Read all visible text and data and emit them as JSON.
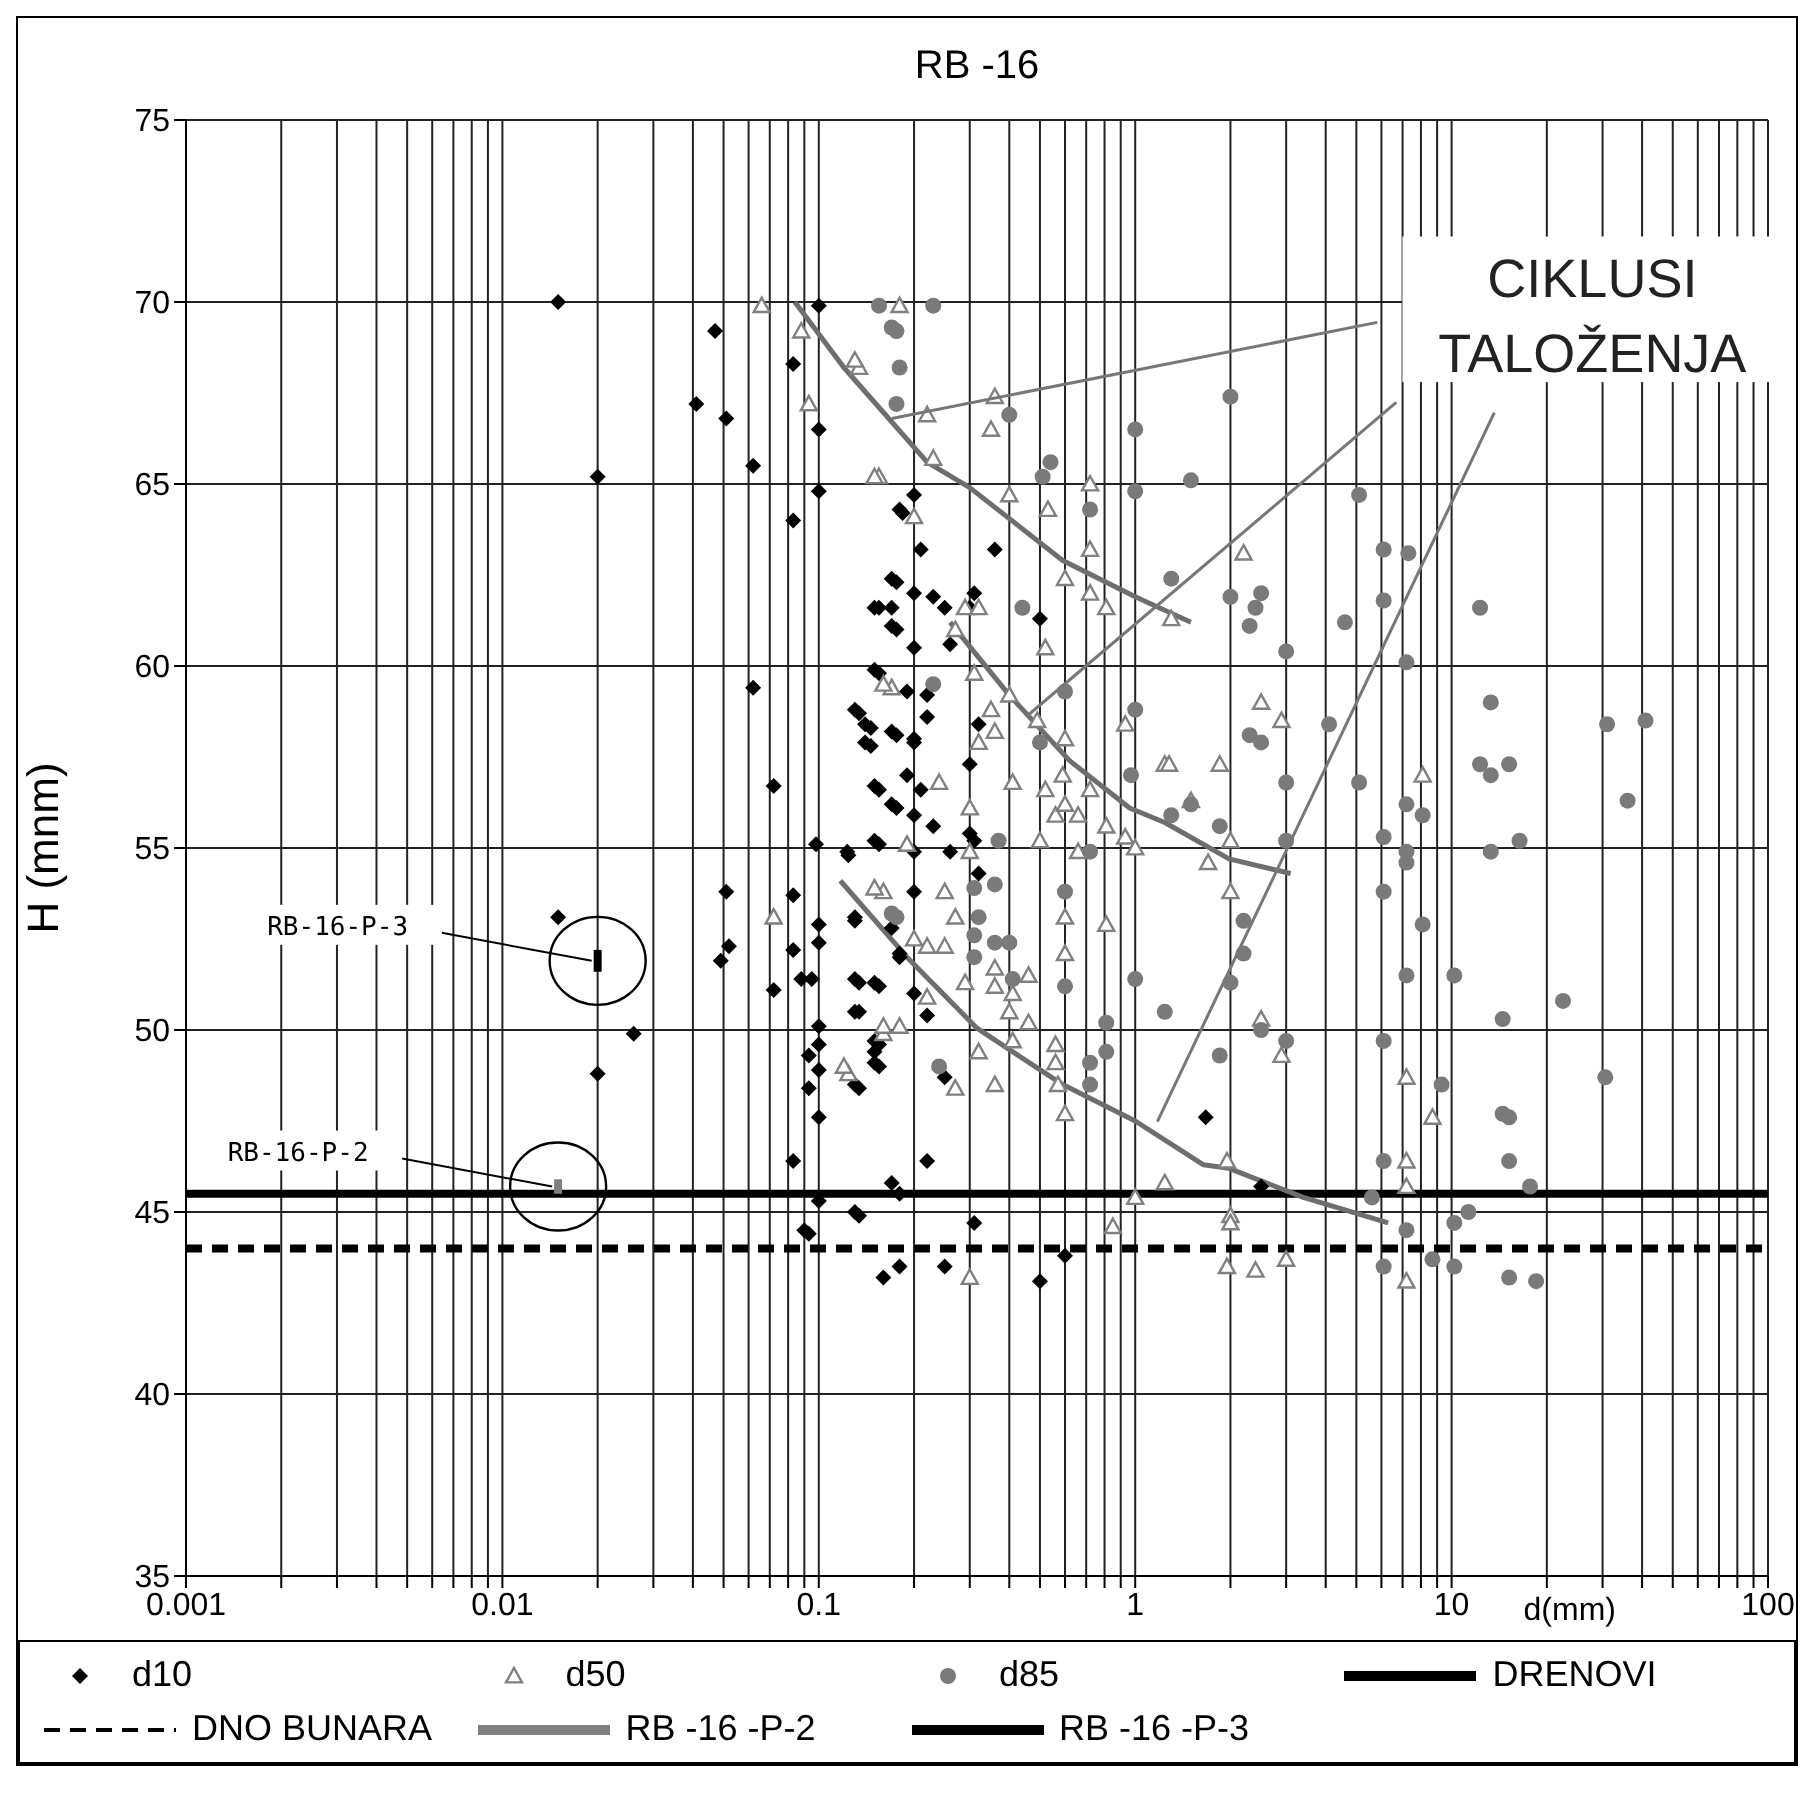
{
  "chart_data": {
    "type": "scatter",
    "title": "RB -16",
    "xlabel": "d(mm)",
    "ylabel": "H (mnm)",
    "log": "x",
    "grid": true,
    "legend": "bottom",
    "xlim": [
      0.001,
      100
    ],
    "ylim": [
      35,
      75
    ],
    "xticks": [
      0.001,
      {
        "value": 0.002,
        "label": null
      },
      {
        "value": 0.003,
        "label": null
      },
      {
        "value": 0.004,
        "label": null
      },
      {
        "value": 0.005,
        "label": null
      },
      {
        "value": 0.006,
        "label": null
      },
      {
        "value": 0.007,
        "label": null
      },
      {
        "value": 0.008,
        "label": null
      },
      {
        "value": 0.009,
        "label": null
      },
      0.01,
      {
        "value": 0.02,
        "label": null
      },
      {
        "value": 0.03,
        "label": null
      },
      {
        "value": 0.04,
        "label": null
      },
      {
        "value": 0.05,
        "label": null
      },
      {
        "value": 0.06,
        "label": null
      },
      {
        "value": 0.07,
        "label": null
      },
      {
        "value": 0.08,
        "label": null
      },
      {
        "value": 0.09,
        "label": null
      },
      0.1,
      {
        "value": 0.2,
        "label": null
      },
      {
        "value": 0.3,
        "label": null
      },
      {
        "value": 0.4,
        "label": null
      },
      {
        "value": 0.5,
        "label": null
      },
      {
        "value": 0.6,
        "label": null
      },
      {
        "value": 0.7,
        "label": null
      },
      {
        "value": 0.8,
        "label": null
      },
      {
        "value": 0.9,
        "label": null
      },
      1,
      {
        "value": 2,
        "label": null
      },
      {
        "value": 3,
        "label": null
      },
      {
        "value": 4,
        "label": null
      },
      {
        "value": 5,
        "label": null
      },
      {
        "value": 6,
        "label": null
      },
      {
        "value": 7,
        "label": null
      },
      {
        "value": 8,
        "label": null
      },
      {
        "value": 9,
        "label": null
      },
      10,
      {
        "value": 20,
        "label": null
      },
      {
        "value": 30,
        "label": null
      },
      {
        "value": 40,
        "label": null
      },
      {
        "value": 50,
        "label": null
      },
      {
        "value": 60,
        "label": null
      },
      {
        "value": 70,
        "label": null
      },
      {
        "value": 80,
        "label": null
      },
      {
        "value": 90,
        "label": null
      },
      100
    ],
    "yticks": [
      35,
      40,
      45,
      50,
      55,
      60,
      65,
      70,
      75
    ],
    "annotations": [
      {
        "text": "RB-16-P-3",
        "x": 0.02,
        "y": 51.9
      },
      {
        "text": "RB-16-P-2",
        "x": 0.015,
        "y": 45.7
      },
      {
        "text": "CIKLUSI\nTALOŽENJA",
        "x": 0.17,
        "y": 66.8
      }
    ],
    "series": [
      {
        "name": "d10",
        "marker": "diamond",
        "color": "#000000",
        "x": [
          0.015,
          0.047,
          0.041,
          0.051,
          0.083,
          0.1,
          0.1,
          0.062,
          0.02,
          0.1,
          0.083,
          0.062,
          0.072,
          0.098,
          0.051,
          0.083,
          0.052,
          0.049,
          0.072,
          0.015,
          0.026,
          0.02,
          0.083,
          0.088,
          0.095,
          0.1,
          0.1,
          0.1,
          0.1,
          0.093,
          0.1,
          0.093,
          0.1,
          0.083,
          0.1,
          0.093,
          0.124,
          0.13,
          0.134,
          0.134,
          0.155,
          0.155,
          0.155,
          0.134,
          0.176,
          0.155,
          0.176,
          0.155,
          0.134,
          0.146,
          0.146,
          0.176,
          0.155,
          0.176,
          0.155,
          0.18,
          0.134,
          0.18,
          0.184,
          0.2,
          0.18,
          0.21,
          0.36,
          0.17,
          0.2,
          0.23,
          0.31,
          0.25,
          0.15,
          0.17,
          0.3,
          0.17,
          0.5,
          0.2,
          0.26,
          0.15,
          0.19,
          0.22,
          0.22,
          0.13,
          0.14,
          0.17,
          0.2,
          0.14,
          0.32,
          0.2,
          0.19,
          0.21,
          0.15,
          0.17,
          0.2,
          0.23,
          0.3,
          0.3,
          0.31,
          0.32,
          0.123,
          0.15,
          0.2,
          0.26,
          0.2,
          0.13,
          0.17,
          0.18,
          0.13,
          0.15,
          0.2,
          0.22,
          0.13,
          0.15,
          0.15,
          0.15,
          0.13,
          0.25,
          0.22,
          0.17,
          0.13,
          0.31,
          0.18,
          0.16,
          0.25,
          0.5,
          0.6,
          1.67,
          2.5,
          0.09
        ],
        "values": [
          70,
          69.2,
          67.2,
          66.8,
          68.3,
          69.9,
          66.5,
          65.5,
          65.2,
          64.8,
          64,
          59.4,
          56.7,
          55.1,
          53.8,
          53.7,
          52.3,
          51.9,
          51.1,
          53.1,
          49.9,
          48.8,
          52.2,
          51.4,
          51.4,
          52.9,
          52.4,
          50.1,
          49.6,
          49.3,
          48.9,
          48.4,
          47.6,
          46.4,
          45.3,
          44.4,
          54.8,
          53,
          51.3,
          50.5,
          51.2,
          49.6,
          49,
          48.4,
          62.3,
          61.6,
          61,
          59.8,
          58.7,
          58.3,
          57.8,
          58.1,
          56.6,
          56.1,
          55.1,
          52,
          44.9,
          45.5,
          64.2,
          64.7,
          64.3,
          63.2,
          63.2,
          62.4,
          62,
          61.9,
          62,
          61.6,
          61.6,
          61.6,
          61.6,
          61.1,
          61.3,
          60.5,
          60.6,
          59.9,
          59.3,
          59.2,
          58.6,
          58.8,
          58.4,
          58.2,
          58,
          57.9,
          58.4,
          57.9,
          57,
          56.6,
          56.7,
          56.2,
          55.9,
          55.6,
          57.3,
          55.4,
          55.2,
          54.3,
          54.9,
          55.2,
          54.9,
          54.9,
          53.8,
          53.1,
          52.8,
          52.1,
          51.4,
          51.3,
          51,
          50.4,
          50.5,
          49.7,
          49.4,
          49.1,
          48.5,
          48.7,
          46.4,
          45.8,
          45,
          44.7,
          43.5,
          43.2,
          43.5,
          43.1,
          43.8,
          47.6,
          45.7,
          44.5
        ]
      },
      {
        "name": "d50",
        "marker": "triangle",
        "color": "#808080",
        "x": [
          0.066,
          0.088,
          0.134,
          0.093,
          0.155,
          0.17,
          0.16,
          0.072,
          0.16,
          0.124,
          0.18,
          0.13,
          0.36,
          0.22,
          0.35,
          0.15,
          0.23,
          0.4,
          0.53,
          0.72,
          0.72,
          0.6,
          0.72,
          0.81,
          1.3,
          0.2,
          0.29,
          0.32,
          0.27,
          0.52,
          0.16,
          0.31,
          0.4,
          0.35,
          0.36,
          0.32,
          0.49,
          0.6,
          0.93,
          1.24,
          0.24,
          0.41,
          0.52,
          0.59,
          0.72,
          0.3,
          0.56,
          0.66,
          0.6,
          0.81,
          0.93,
          0.19,
          0.3,
          0.5,
          0.66,
          1.0,
          0.15,
          0.25,
          0.27,
          0.6,
          0.81,
          0.2,
          0.22,
          0.25,
          0.6,
          0.29,
          0.36,
          0.36,
          0.46,
          0.41,
          0.22,
          0.4,
          0.46,
          0.16,
          0.18,
          0.41,
          0.56,
          0.32,
          0.12,
          0.56,
          0.27,
          0.36,
          0.57,
          0.6,
          1.24,
          1.0,
          0.85,
          0.3,
          2.2,
          2.5,
          2.9,
          1.85,
          1.28,
          1.5,
          8.1,
          2.0,
          1.7,
          2.0,
          2.5,
          2.9,
          7.2,
          8.7,
          1.95,
          7.2,
          7.2,
          2.0,
          2.0,
          1.95,
          2.4,
          3.0,
          7.2
        ],
        "values": [
          69.9,
          69.2,
          68.2,
          67.2,
          65.2,
          59.4,
          53.8,
          53.1,
          49.9,
          48.8,
          69.9,
          68.4,
          67.4,
          66.9,
          66.5,
          65.2,
          65.7,
          64.7,
          64.3,
          65,
          63.2,
          62.4,
          62,
          61.6,
          61.3,
          64.1,
          61.6,
          61.6,
          61,
          60.5,
          59.5,
          59.8,
          59.2,
          58.8,
          58.2,
          57.9,
          58.5,
          58,
          58.4,
          57.3,
          56.8,
          56.8,
          56.6,
          57,
          56.6,
          56.1,
          55.9,
          55.9,
          56.2,
          55.6,
          55.3,
          55.1,
          54.9,
          55.2,
          54.9,
          55,
          53.9,
          53.8,
          53.1,
          53.1,
          52.9,
          52.5,
          52.3,
          52.3,
          52.1,
          51.3,
          51.7,
          51.2,
          51.5,
          51,
          50.9,
          50.5,
          50.2,
          50.1,
          50.1,
          49.7,
          49.6,
          49.4,
          49,
          49.1,
          48.4,
          48.5,
          48.5,
          47.7,
          45.8,
          45.4,
          44.6,
          43.2,
          63.1,
          59,
          58.5,
          57.3,
          57.3,
          56.3,
          57,
          55.2,
          54.6,
          53.8,
          50.3,
          49.3,
          48.7,
          47.6,
          46.4,
          46.4,
          45.7,
          44.9,
          44.7,
          43.5,
          43.4,
          43.7,
          43.1
        ]
      },
      {
        "name": "d85",
        "marker": "circle",
        "color": "#7a7a7a",
        "x": [
          0.155,
          0.176,
          0.18,
          0.176,
          0.176,
          0.23,
          0.17,
          0.4,
          0.51,
          0.54,
          0.72,
          1.0,
          1.0,
          1.5,
          1.3,
          0.44,
          0.23,
          0.6,
          1.0,
          0.5,
          0.97,
          1.3,
          1.5,
          0.37,
          0.72,
          0.31,
          0.36,
          0.6,
          0.17,
          0.32,
          0.31,
          0.36,
          0.4,
          0.31,
          0.41,
          0.6,
          1.0,
          1.24,
          0.81,
          0.81,
          0.72,
          0.72,
          0.24,
          2.0,
          5.1,
          6.1,
          7.3,
          2.0,
          2.5,
          2.4,
          2.3,
          4.6,
          6.1,
          12.3,
          3.0,
          7.2,
          13.3,
          2.3,
          2.5,
          4.1,
          31,
          41,
          12.3,
          13.3,
          15.2,
          3.0,
          5.1,
          1.85,
          6.1,
          7.2,
          8.1,
          36,
          3.0,
          7.2,
          7.2,
          13.3,
          16.4,
          6.1,
          8.1,
          2.2,
          2.2,
          2.0,
          7.2,
          10.2,
          22.5,
          14.5,
          2.5,
          3.0,
          1.85,
          6.1,
          30.6,
          9.3,
          14.5,
          15.2,
          6.1,
          15.2,
          17.7,
          5.6,
          7.2,
          11.3,
          10.2,
          8.7,
          6.1,
          10.2,
          15.2,
          18.5
        ],
        "values": [
          69.9,
          69.2,
          68.2,
          67.2,
          53.1,
          69.9,
          69.3,
          66.9,
          65.2,
          65.6,
          64.3,
          66.5,
          64.8,
          65.1,
          62.4,
          61.6,
          59.5,
          59.3,
          58.8,
          57.9,
          57,
          55.9,
          56.2,
          55.2,
          54.9,
          53.9,
          54,
          53.8,
          53.2,
          53.1,
          52.6,
          52.4,
          52.4,
          52,
          51.4,
          51.2,
          51.4,
          50.5,
          50.2,
          49.4,
          49.1,
          48.5,
          49,
          67.4,
          64.7,
          63.2,
          63.1,
          61.9,
          62,
          61.6,
          61.1,
          61.2,
          61.8,
          61.6,
          60.4,
          60.1,
          59,
          58.1,
          57.9,
          58.4,
          58.4,
          58.5,
          57.3,
          57,
          57.3,
          56.8,
          56.8,
          55.6,
          55.3,
          56.2,
          55.9,
          56.3,
          55.2,
          54.9,
          54.6,
          54.9,
          55.2,
          53.8,
          52.9,
          53,
          52.1,
          51.3,
          51.5,
          51.5,
          50.8,
          50.3,
          50,
          49.7,
          49.3,
          49.7,
          48.7,
          48.5,
          47.7,
          47.6,
          46.4,
          46.4,
          45.7,
          45.4,
          44.5,
          45,
          44.7,
          43.7,
          43.5,
          43.5,
          43.2,
          43.1
        ]
      },
      {
        "name": "DRENOVI",
        "type": "line",
        "marker": "none",
        "line_style": "solid",
        "color": "#000000",
        "x": [
          0.001,
          100
        ],
        "values": [
          45.5,
          45.5
        ]
      },
      {
        "name": "DNO BUNARA",
        "type": "line",
        "marker": "none",
        "line_style": "dashed",
        "color": "#000000",
        "x": [
          0.001,
          100
        ],
        "values": [
          44,
          44
        ]
      },
      {
        "name": "RB -16 -P-2",
        "type": "line",
        "marker": "none",
        "line_style": "solid",
        "color": "#808080",
        "x": [
          0.015,
          0.015
        ],
        "values": [
          45.5,
          45.9
        ]
      },
      {
        "name": "RB -16 -P-3",
        "type": "line",
        "marker": "none",
        "line_style": "solid",
        "color": "#000000",
        "x": [
          0.02,
          0.02
        ],
        "values": [
          51.6,
          52.2
        ]
      },
      {
        "type": "line",
        "marker": "none",
        "line_style": "solid",
        "color": "#6e6e6e",
        "x": [
          0.084,
          0.12,
          0.22,
          0.3,
          0.59,
          1.0,
          1.5
        ],
        "values": [
          70,
          68.2,
          65.6,
          64.9,
          62.9,
          61.9,
          61.2
        ]
      },
      {
        "type": "line",
        "marker": "none",
        "line_style": "solid",
        "color": "#6e6e6e",
        "x": [
          0.26,
          0.4,
          0.62,
          0.96,
          1.24,
          1.98,
          3.1
        ],
        "values": [
          61.2,
          59.2,
          57.4,
          56.1,
          55.7,
          54.7,
          54.3
        ]
      },
      {
        "type": "line",
        "marker": "none",
        "line_style": "solid",
        "color": "#6e6e6e",
        "x": [
          0.117,
          0.19,
          0.316,
          0.59,
          1.0,
          1.64,
          1.98,
          3.4,
          6.3
        ],
        "values": [
          54.1,
          52,
          50.05,
          48.5,
          47.5,
          46.3,
          46.2,
          45.4,
          44.7
        ]
      }
    ]
  }
}
